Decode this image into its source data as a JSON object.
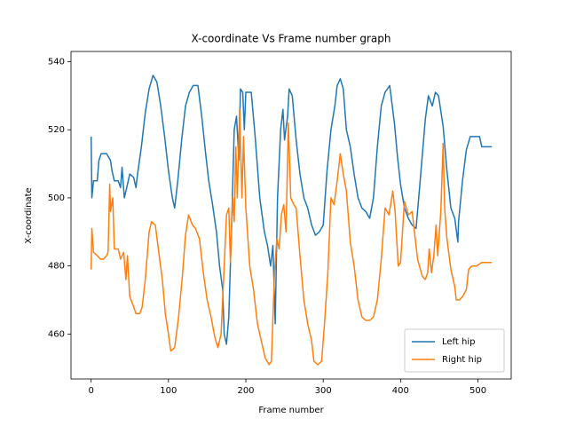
{
  "chart_data": {
    "type": "line",
    "title": "X-coordinate Vs Frame number graph",
    "x_label": "Frame number",
    "y_label": "X-coordinate",
    "xlim": [
      -26,
      543
    ],
    "xticks": [
      0,
      100,
      200,
      300,
      400,
      500
    ],
    "ylim": [
      446.8,
      543
    ],
    "yticks": [
      460,
      480,
      500,
      520,
      540
    ],
    "legend": "lower right",
    "series": [
      {
        "name": "Left hip",
        "color": "#1f77b4",
        "x": [
          0,
          1,
          3,
          8,
          10,
          13,
          20,
          25,
          27,
          30,
          35,
          38,
          40,
          43,
          46,
          50,
          55,
          58,
          60,
          65,
          70,
          75,
          80,
          85,
          90,
          95,
          100,
          105,
          108,
          112,
          117,
          122,
          127,
          132,
          138,
          143,
          148,
          152,
          157,
          162,
          166,
          170,
          172,
          175,
          178,
          182,
          185,
          188,
          191,
          193,
          196,
          198,
          200,
          207,
          212,
          218,
          224,
          228,
          232,
          235,
          238,
          241,
          245,
          248,
          250,
          254,
          256,
          260,
          265,
          270,
          275,
          280,
          285,
          290,
          295,
          300,
          305,
          310,
          315,
          318,
          322,
          326,
          330,
          335,
          340,
          345,
          350,
          355,
          360,
          365,
          370,
          375,
          380,
          386,
          392,
          396,
          400,
          405,
          410,
          415,
          420,
          425,
          432,
          436,
          441,
          445,
          449,
          455,
          460,
          465,
          470,
          474,
          475,
          480,
          485,
          490,
          495,
          502,
          505,
          518
        ],
        "values": [
          518,
          500,
          505,
          505,
          511,
          513,
          513,
          511,
          508,
          505,
          505,
          503,
          509,
          500,
          503,
          507,
          506,
          503,
          507,
          515,
          525,
          532,
          536,
          534,
          527,
          518,
          508,
          500,
          497,
          505,
          517,
          527,
          531,
          533,
          533,
          524,
          513,
          505,
          498,
          490,
          480,
          473,
          460,
          457,
          465,
          495,
          520,
          524,
          511,
          532,
          531,
          520,
          531,
          531,
          518,
          500,
          490,
          486,
          480,
          486,
          463,
          500,
          520,
          526,
          517,
          524,
          532,
          530,
          517,
          507,
          500,
          497,
          492,
          489,
          490,
          492,
          508,
          520,
          527,
          533,
          535,
          532,
          520,
          515,
          507,
          500,
          497,
          496,
          494,
          500,
          515,
          527,
          531,
          533,
          522,
          512,
          504,
          497,
          494,
          492,
          491,
          504,
          523,
          530,
          527,
          531,
          530,
          521,
          508,
          497,
          494,
          487,
          493,
          505,
          514,
          518,
          518,
          518,
          515,
          515
        ]
      },
      {
        "name": "Right hip",
        "color": "#ff7f0e",
        "x": [
          0,
          1,
          3,
          8,
          12,
          16,
          20,
          22,
          24,
          25,
          28,
          30,
          35,
          38,
          42,
          45,
          47,
          50,
          55,
          58,
          63,
          66,
          70,
          75,
          78,
          83,
          88,
          92,
          96,
          100,
          103,
          108,
          113,
          118,
          122,
          126,
          131,
          135,
          140,
          145,
          150,
          155,
          160,
          164,
          168,
          172,
          175,
          178,
          180,
          183,
          185,
          187,
          189,
          192,
          195,
          197,
          200,
          205,
          210,
          215,
          220,
          225,
          230,
          233,
          237,
          240,
          243,
          246,
          249,
          252,
          255,
          258,
          262,
          265,
          270,
          275,
          280,
          285,
          288,
          293,
          298,
          302,
          306,
          310,
          314,
          318,
          322,
          326,
          330,
          335,
          340,
          345,
          350,
          355,
          360,
          365,
          370,
          375,
          380,
          385,
          390,
          393,
          397,
          400,
          405,
          410,
          415,
          418,
          422,
          428,
          432,
          435,
          437,
          440,
          443,
          446,
          448,
          452,
          455,
          457,
          460,
          465,
          470,
          472,
          476,
          480,
          485,
          488,
          492,
          498,
          505,
          518
        ],
        "values": [
          479,
          491,
          484,
          483,
          482,
          482,
          483,
          484,
          504,
          496,
          500,
          485,
          485,
          482,
          484,
          476,
          483,
          471,
          468,
          466,
          466,
          468,
          476,
          490,
          493,
          492,
          483,
          476,
          466,
          460,
          455,
          456,
          465,
          477,
          489,
          495,
          492,
          491,
          488,
          478,
          470,
          465,
          459,
          456,
          460,
          480,
          495,
          497,
          481,
          500,
          493,
          515,
          500,
          526,
          500,
          518,
          497,
          480,
          473,
          463,
          458,
          453,
          451,
          452,
          478,
          488,
          485,
          495,
          498,
          490,
          522,
          500,
          498,
          497,
          483,
          470,
          463,
          458,
          452,
          451,
          452,
          464,
          478,
          500,
          498,
          505,
          513,
          507,
          502,
          487,
          480,
          470,
          465,
          464,
          464,
          465,
          470,
          482,
          497,
          495,
          502,
          496,
          480,
          481,
          499,
          495,
          496,
          490,
          482,
          477,
          476,
          478,
          485,
          478,
          483,
          492,
          483,
          496,
          516,
          497,
          488,
          479,
          474,
          470,
          470,
          471,
          473,
          479,
          480,
          480,
          481,
          481
        ]
      }
    ]
  }
}
